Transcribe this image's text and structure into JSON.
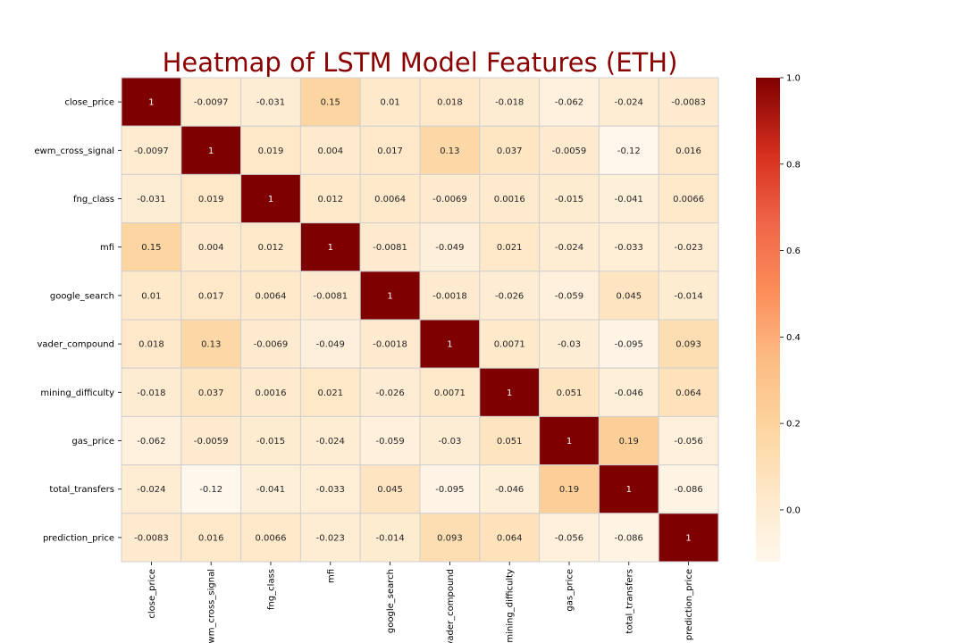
{
  "chart_data": {
    "type": "heatmap",
    "title": "Heatmap of LSTM Model Features (ETH)",
    "labels": [
      "close_price",
      "ewm_cross_signal",
      "fng_class",
      "mfi",
      "google_search",
      "vader_compound",
      "mining_difficulty",
      "gas_price",
      "total_transfers",
      "prediction_price"
    ],
    "matrix": [
      [
        "1",
        "-0.0097",
        "-0.031",
        "0.15",
        "0.01",
        "0.018",
        "-0.018",
        "-0.062",
        "-0.024",
        "-0.0083"
      ],
      [
        "-0.0097",
        "1",
        "0.019",
        "0.004",
        "0.017",
        "0.13",
        "0.037",
        "-0.0059",
        "-0.12",
        "0.016"
      ],
      [
        "-0.031",
        "0.019",
        "1",
        "0.012",
        "0.0064",
        "-0.0069",
        "0.0016",
        "-0.015",
        "-0.041",
        "0.0066"
      ],
      [
        "0.15",
        "0.004",
        "0.012",
        "1",
        "-0.0081",
        "-0.049",
        "0.021",
        "-0.024",
        "-0.033",
        "-0.023"
      ],
      [
        "0.01",
        "0.017",
        "0.0064",
        "-0.0081",
        "1",
        "-0.0018",
        "-0.026",
        "-0.059",
        "0.045",
        "-0.014"
      ],
      [
        "0.018",
        "0.13",
        "-0.0069",
        "-0.049",
        "-0.0018",
        "1",
        "0.0071",
        "-0.03",
        "-0.095",
        "0.093"
      ],
      [
        "-0.018",
        "0.037",
        "0.0016",
        "0.021",
        "-0.026",
        "0.0071",
        "1",
        "0.051",
        "-0.046",
        "0.064"
      ],
      [
        "-0.062",
        "-0.0059",
        "-0.015",
        "-0.024",
        "-0.059",
        "-0.03",
        "0.051",
        "1",
        "0.19",
        "-0.056"
      ],
      [
        "-0.024",
        "-0.12",
        "-0.041",
        "-0.033",
        "0.045",
        "-0.095",
        "-0.046",
        "0.19",
        "1",
        "-0.086"
      ],
      [
        "-0.0083",
        "0.016",
        "0.0066",
        "-0.023",
        "-0.014",
        "0.093",
        "0.064",
        "-0.056",
        "-0.086",
        "1"
      ]
    ],
    "colormap": "OrRd",
    "vmin": -0.12,
    "vmax": 1.0,
    "colorbar_ticks": [
      "0.0",
      "0.2",
      "0.4",
      "0.6",
      "0.8",
      "1.0"
    ],
    "grid": true,
    "legend": "colorbar-right"
  }
}
